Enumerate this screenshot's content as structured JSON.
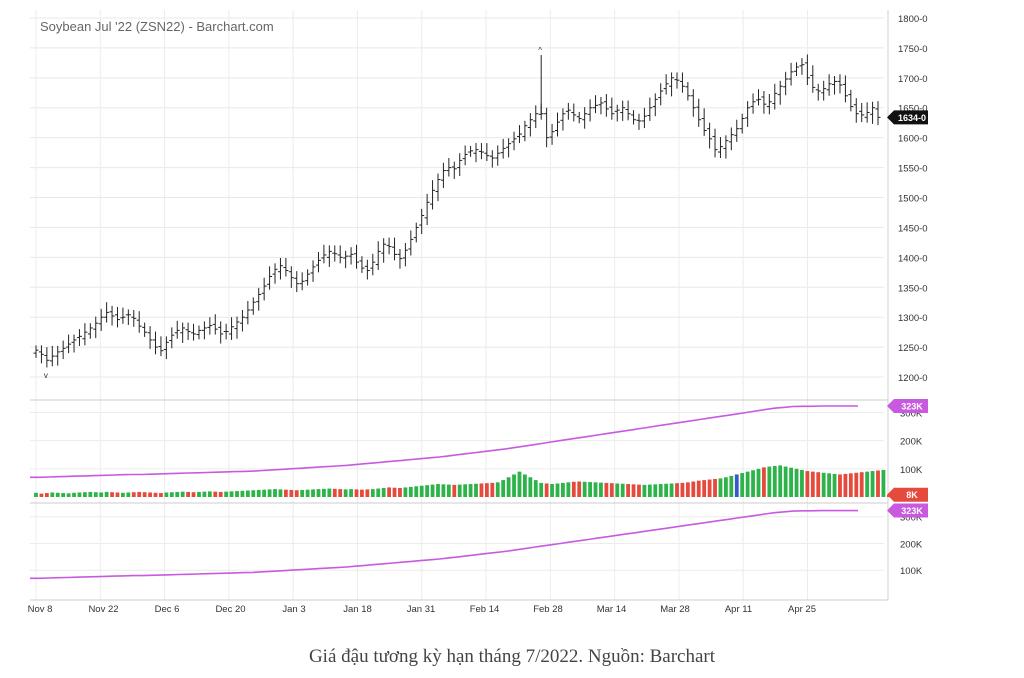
{
  "chart_data": {
    "type": "bar",
    "title": "Soybean Jul '22 (ZSN22) - Barchart.com",
    "price": {
      "yticks": [
        "1800-0",
        "1750-0",
        "1700-0",
        "1650-0",
        "1600-0",
        "1550-0",
        "1500-0",
        "1450-0",
        "1400-0",
        "1350-0",
        "1300-0",
        "1250-0",
        "1200-0"
      ],
      "ylim": [
        1175,
        1810
      ],
      "last_label": "1634-0",
      "last_value": 1634,
      "closes": [
        1245,
        1238,
        1228,
        1235,
        1242,
        1248,
        1255,
        1262,
        1268,
        1275,
        1282,
        1290,
        1300,
        1308,
        1302,
        1296,
        1300,
        1304,
        1298,
        1285,
        1275,
        1262,
        1250,
        1244,
        1258,
        1270,
        1278,
        1282,
        1276,
        1272,
        1278,
        1282,
        1286,
        1280,
        1272,
        1276,
        1284,
        1292,
        1300,
        1312,
        1325,
        1338,
        1352,
        1368,
        1380,
        1386,
        1378,
        1366,
        1356,
        1360,
        1372,
        1384,
        1395,
        1404,
        1410,
        1406,
        1400,
        1402,
        1405,
        1392,
        1382,
        1378,
        1392,
        1410,
        1422,
        1418,
        1405,
        1398,
        1412,
        1430,
        1450,
        1470,
        1492,
        1512,
        1530,
        1545,
        1550,
        1548,
        1562,
        1572,
        1578,
        1580,
        1576,
        1570,
        1566,
        1574,
        1582,
        1590,
        1598,
        1606,
        1620,
        1630,
        1640,
        1640,
        1600,
        1610,
        1626,
        1640,
        1646,
        1638,
        1632,
        1640,
        1650,
        1654,
        1658,
        1648,
        1640,
        1646,
        1650,
        1640,
        1630,
        1628,
        1636,
        1650,
        1664,
        1678,
        1690,
        1700,
        1696,
        1686,
        1670,
        1650,
        1630,
        1612,
        1598,
        1580,
        1585,
        1595,
        1605,
        1615,
        1632,
        1650,
        1660,
        1664,
        1656,
        1660,
        1674,
        1686,
        1698,
        1710,
        1718,
        1722,
        1700,
        1684,
        1678,
        1682,
        1690,
        1694,
        1688,
        1670,
        1652,
        1640,
        1638,
        1642,
        1650,
        1634
      ],
      "ranges": [
        [
          86,
          1212
        ],
        [
          152,
          1738
        ]
      ]
    },
    "volume": {
      "yticks": [
        "300K",
        "200K",
        "100K"
      ],
      "ylim": [
        0,
        330
      ],
      "last_label": "8K",
      "oi_label": "323K",
      "values": [
        15,
        12,
        14,
        16,
        15,
        14,
        13,
        15,
        16,
        17,
        18,
        17,
        16,
        18,
        17,
        16,
        15,
        16,
        17,
        18,
        17,
        16,
        15,
        14,
        16,
        17,
        18,
        19,
        18,
        17,
        18,
        19,
        20,
        19,
        18,
        19,
        20,
        21,
        22,
        23,
        24,
        25,
        26,
        27,
        28,
        27,
        26,
        25,
        24,
        25,
        26,
        27,
        28,
        29,
        30,
        29,
        28,
        27,
        28,
        27,
        26,
        27,
        28,
        30,
        32,
        34,
        33,
        32,
        34,
        36,
        38,
        40,
        42,
        44,
        46,
        45,
        44,
        43,
        44,
        45,
        46,
        47,
        48,
        49,
        50,
        52,
        60,
        70,
        80,
        90,
        80,
        70,
        60,
        50,
        48,
        46,
        48,
        50,
        52,
        54,
        55,
        54,
        53,
        52,
        51,
        50,
        49,
        48,
        47,
        46,
        45,
        44,
        43,
        44,
        45,
        46,
        47,
        48,
        49,
        50,
        52,
        55,
        58,
        60,
        62,
        64,
        66,
        70,
        75,
        80,
        85,
        90,
        95,
        100,
        105,
        108,
        110,
        112,
        108,
        104,
        100,
        96,
        92,
        90,
        88,
        86,
        84,
        82,
        80,
        82,
        84,
        86,
        88,
        90,
        92,
        94,
        96,
        8
      ],
      "colors": [
        "#e64a3c",
        "#2eb34a",
        "#2eb34a",
        "#e64a3c",
        "#2eb34a",
        "#e64a3c"
      ],
      "oi": [
        70,
        70,
        71,
        72,
        73,
        74,
        75,
        76,
        77,
        78,
        79,
        80,
        80,
        81,
        82,
        83,
        84,
        85,
        86,
        87,
        88,
        89,
        90,
        91,
        92,
        94,
        96,
        98,
        100,
        102,
        104,
        106,
        108,
        110,
        112,
        115,
        118,
        121,
        124,
        127,
        130,
        133,
        136,
        139,
        142,
        146,
        150,
        154,
        158,
        162,
        166,
        170,
        175,
        180,
        185,
        190,
        195,
        200,
        205,
        210,
        215,
        220,
        225,
        230,
        235,
        240,
        245,
        250,
        255,
        260,
        265,
        270,
        275,
        280,
        285,
        290,
        295,
        300,
        305,
        310,
        315,
        318,
        321,
        322,
        322,
        323,
        323,
        323,
        323,
        323
      ],
      "blue_index": 129
    },
    "open_interest": {
      "yticks": [
        "300K",
        "200K",
        "100K"
      ],
      "ylim": [
        0,
        340
      ],
      "oi_label": "323K"
    },
    "xticks": [
      "Nov 8",
      "Nov 22",
      "Dec 6",
      "Dec 20",
      "Jan 3",
      "Jan 18",
      "Jan 31",
      "Feb 14",
      "Feb 28",
      "Mar 14",
      "Mar 28",
      "Apr 11",
      "Apr 25"
    ],
    "grid": true
  },
  "caption": "Giá đậu tương kỳ hạn tháng 7/2022. Nguồn: Barchart"
}
